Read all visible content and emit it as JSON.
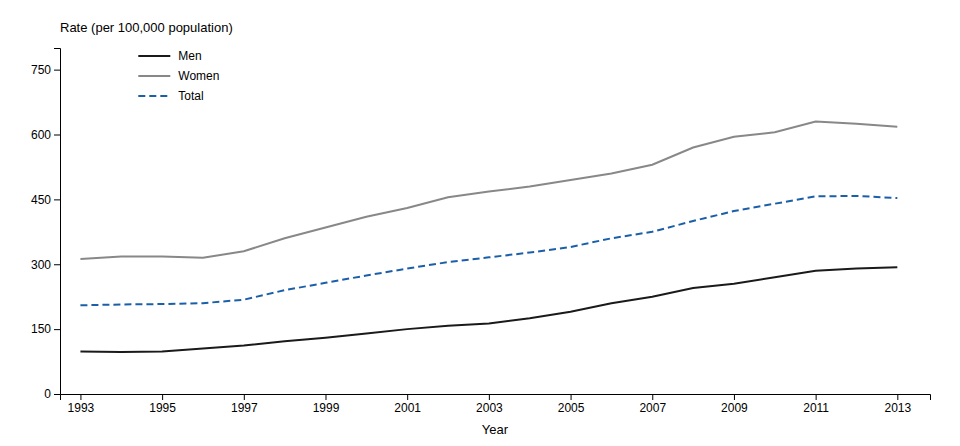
{
  "chart_data": {
    "type": "line",
    "xlabel": "Year",
    "ylabel": "Rate (per 100,000 population)",
    "x": [
      1993,
      1994,
      1995,
      1996,
      1997,
      1998,
      1999,
      2000,
      2001,
      2002,
      2003,
      2004,
      2005,
      2006,
      2007,
      2008,
      2009,
      2010,
      2011,
      2012,
      2013
    ],
    "series": [
      {
        "name": "Men",
        "color": "#1a1a1a",
        "line_style": "solid",
        "values": [
          98,
          97,
          98,
          105,
          112,
          122,
          130,
          140,
          150,
          158,
          163,
          175,
          190,
          210,
          225,
          245,
          255,
          270,
          285,
          290,
          293
        ]
      },
      {
        "name": "Women",
        "color": "#888888",
        "line_style": "solid",
        "values": [
          312,
          318,
          318,
          315,
          330,
          360,
          385,
          410,
          430,
          455,
          468,
          480,
          495,
          510,
          530,
          570,
          595,
          605,
          630,
          625,
          618
        ]
      },
      {
        "name": "Total",
        "color": "#1a5fa8",
        "line_style": "dashed",
        "values": [
          205,
          207,
          208,
          210,
          218,
          240,
          257,
          274,
          290,
          305,
          316,
          327,
          340,
          360,
          375,
          400,
          423,
          440,
          457,
          458,
          453
        ]
      }
    ],
    "xlim": [
      1992.5,
      2013.8
    ],
    "xticks": [
      1993,
      1995,
      1997,
      1999,
      2001,
      2003,
      2005,
      2007,
      2009,
      2011,
      2013
    ],
    "ylim": [
      0,
      800
    ],
    "yticks": [
      0,
      150,
      300,
      450,
      600,
      750
    ],
    "grid": false,
    "legend": "upper left"
  }
}
